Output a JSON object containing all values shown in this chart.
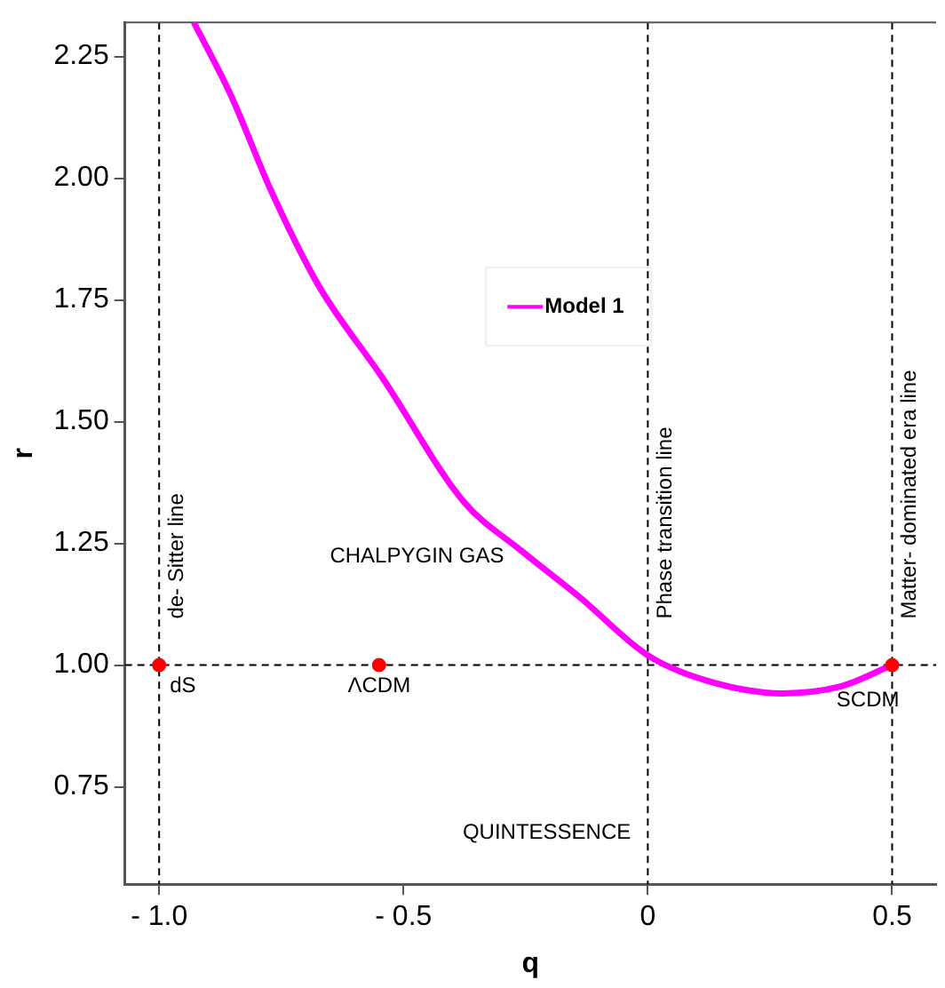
{
  "chart_data": {
    "type": "line",
    "xlabel": "q",
    "ylabel": "r",
    "xlim": [
      -1.07,
      0.59
    ],
    "ylim": [
      0.55,
      2.32
    ],
    "xticks": [
      {
        "value": -1,
        "label": "- 1.0"
      },
      {
        "value": -0.5,
        "label": "- 0.5"
      },
      0,
      0.5
    ],
    "yticks": [
      {
        "value": 0.75,
        "label": "0.75"
      },
      {
        "value": 1,
        "label": "1.00"
      },
      {
        "value": 1.25,
        "label": "1.25"
      },
      {
        "value": 1.5,
        "label": "1.50"
      },
      {
        "value": 1.75,
        "label": "1.75"
      },
      {
        "value": 2,
        "label": "2.00"
      },
      {
        "value": 2.25,
        "label": "2.25"
      }
    ],
    "grid": false,
    "legend": "center",
    "marker": "none",
    "line_style": "solid",
    "series": [
      {
        "name": "Model 1",
        "color": "#ff00ff",
        "x": [
          -0.929,
          -0.854,
          -0.769,
          -0.674,
          -0.543,
          -0.377,
          -0.259,
          -0.14,
          0,
          0.121,
          0.275,
          0.394,
          0.5
        ],
        "values": [
          2.32,
          2.172,
          1.97,
          1.78,
          1.59,
          1.336,
          1.235,
          1.14,
          1.02,
          0.968,
          0.942,
          0.956,
          1.0
        ]
      },
      {
        "type": "scatter",
        "color": "#ff0000",
        "marker": "circle",
        "x": [
          -1,
          -0.55,
          0.5
        ],
        "values": [
          1,
          1,
          1
        ]
      }
    ],
    "ref_lines": [
      {
        "axis": "x",
        "value": -1,
        "label": "de- Sitter line",
        "color": "#000000",
        "line_style": "dashed"
      },
      {
        "axis": "x",
        "value": 0,
        "label": "Phase transition line",
        "color": "#000000",
        "line_style": "dashed"
      },
      {
        "axis": "x",
        "value": 0.5,
        "label": "Matter- dominated era line",
        "color": "#000000",
        "line_style": "dashed"
      },
      {
        "axis": "y",
        "value": 1,
        "color": "#000000",
        "line_style": "dashed"
      }
    ],
    "annotations": [
      {
        "text": "dS",
        "x": -1,
        "y": 1
      },
      {
        "text": "ΛCDM",
        "x": -0.55,
        "y": 1
      },
      {
        "text": "SCDM",
        "x": 0.5,
        "y": 1
      },
      "CHALPYGIN GAS",
      "QUINTESSENCE"
    ]
  }
}
